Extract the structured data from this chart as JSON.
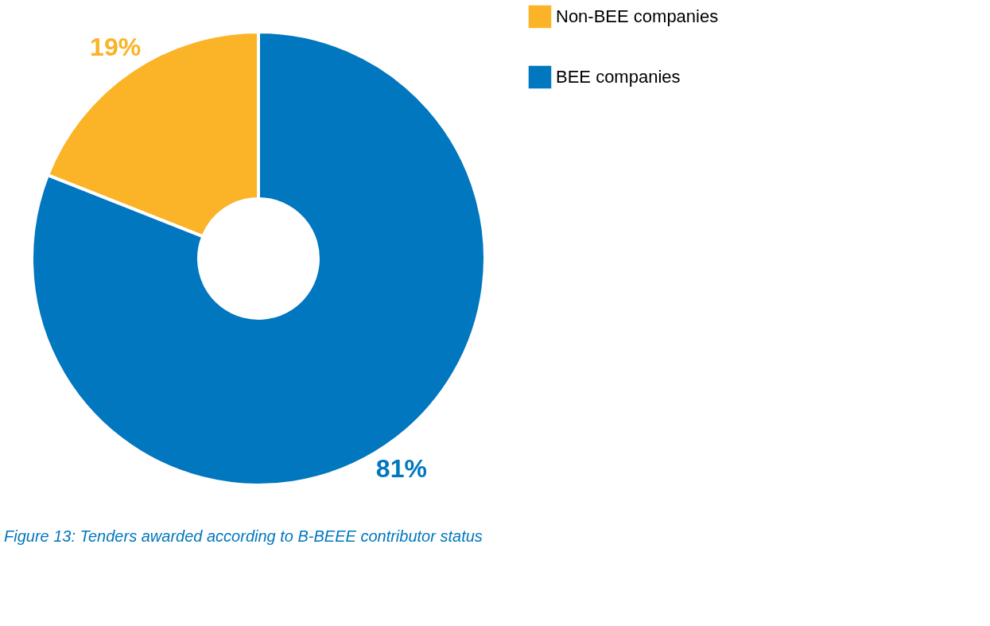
{
  "chart_data": {
    "type": "donut",
    "categories": [
      "Non-BEE companies",
      "BEE companies"
    ],
    "values": [
      19,
      81
    ],
    "colors": [
      "#fbb327",
      "#0077be"
    ],
    "value_labels": [
      "19%",
      "81%"
    ],
    "legend": "right",
    "annotations": [
      "Figure 13: Tenders awarded according to B-BEEE contributor status"
    ]
  }
}
